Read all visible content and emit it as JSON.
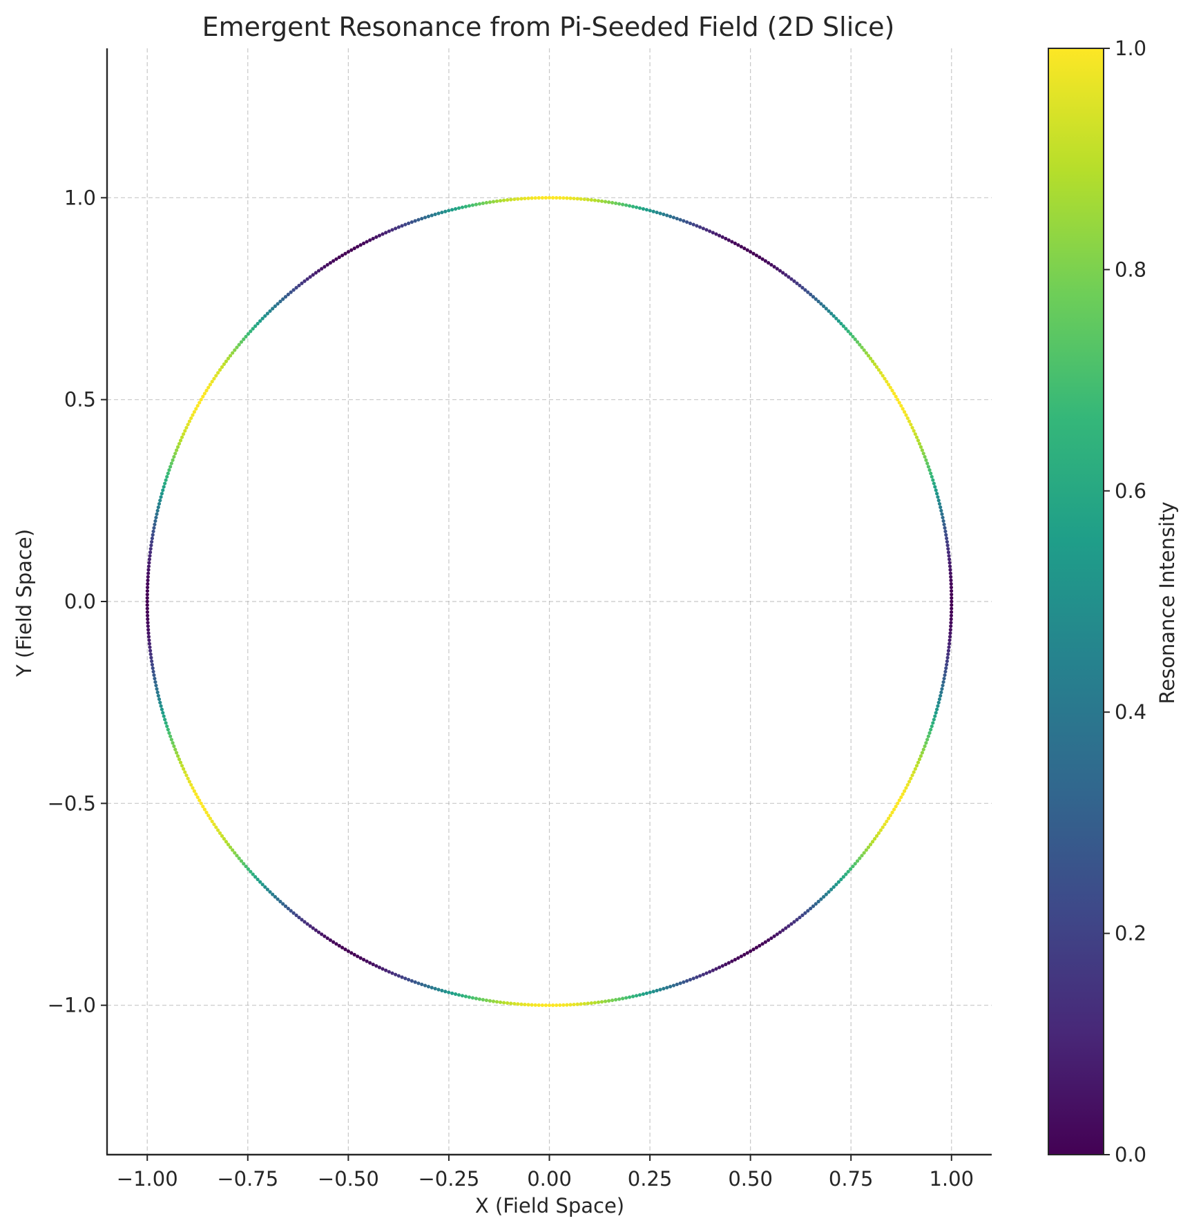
{
  "chart_data": {
    "type": "scatter",
    "title": "Emergent Resonance from Pi-Seeded Field (2D Slice)",
    "xlabel": "X (Field Space)",
    "ylabel": "Y (Field Space)",
    "xlim": [
      -1.1,
      1.1
    ],
    "ylim": [
      -1.37,
      1.37
    ],
    "xticks": [
      -1.0,
      -0.75,
      -0.5,
      -0.25,
      0.0,
      0.25,
      0.5,
      0.75,
      1.0
    ],
    "xtick_labels": [
      "−1.00",
      "−0.75",
      "−0.50",
      "−0.25",
      "0.00",
      "0.25",
      "0.50",
      "0.75",
      "1.00"
    ],
    "yticks": [
      -1.0,
      -0.5,
      0.0,
      0.5,
      1.0
    ],
    "ytick_labels": [
      "−1.0",
      "−0.5",
      "0.0",
      "0.5",
      "1.0"
    ],
    "grid": true,
    "point_count": 720,
    "curve": "unit circle x = cos(θ), y = sin(θ), θ ∈ [0, 2π)",
    "series": [
      {
        "color_value": "resonance intensity = (1 − cos 6θ) / 2 around the circle; 0 at θ = 0°, 60°, 120°, 180°, 240°, 300°; 1 at θ = 30°, 90°, 150°, 210°, 270°, 330°"
      }
    ],
    "colorbar": {
      "label": "Resonance Intensity",
      "range": [
        0.0,
        1.0
      ],
      "ticks": [
        0.0,
        0.2,
        0.4,
        0.6,
        0.8,
        1.0
      ],
      "tick_labels": [
        "0.0",
        "0.2",
        "0.4",
        "0.6",
        "0.8",
        "1.0"
      ],
      "colormap": "viridis",
      "colormap_stops": [
        "#440154",
        "#482878",
        "#3e4989",
        "#31688e",
        "#26828e",
        "#1f9e89",
        "#35b779",
        "#6ece58",
        "#b5de2b",
        "#fde725"
      ]
    }
  }
}
